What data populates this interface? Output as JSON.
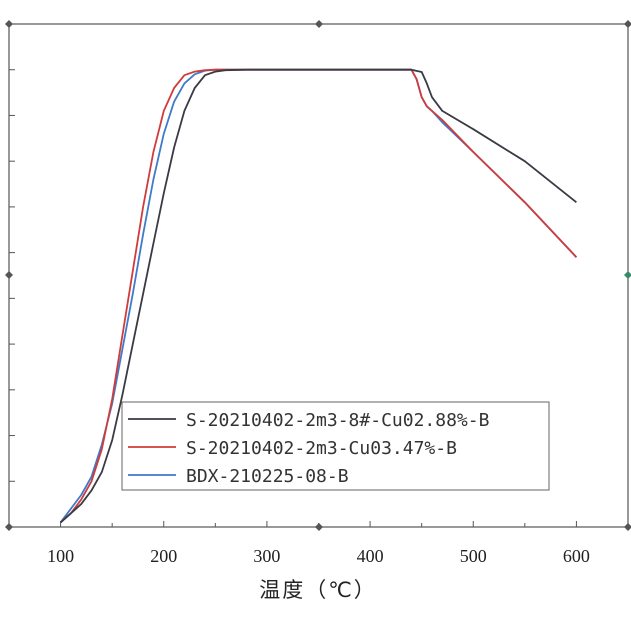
{
  "chart_data": {
    "type": "line",
    "title": "",
    "xlabel": "温度（℃）",
    "ylabel": "",
    "xlim": [
      50,
      650
    ],
    "ylim": [
      0,
      110
    ],
    "x_ticks": [
      100,
      200,
      300,
      400,
      500,
      600
    ],
    "grid": false,
    "legend": {
      "position": "bottom-right"
    },
    "series": [
      {
        "name": "S-20210402-2m3-8#-Cu02.88%-B",
        "color": "#3a3a44",
        "x": [
          100,
          110,
          120,
          130,
          140,
          150,
          160,
          170,
          180,
          190,
          200,
          210,
          220,
          230,
          240,
          250,
          260,
          280,
          300,
          350,
          400,
          440,
          450,
          455,
          460,
          470,
          500,
          550,
          600
        ],
        "y": [
          1,
          3,
          5,
          8,
          12,
          19,
          29,
          40,
          51,
          62,
          73,
          83,
          91,
          96,
          98.8,
          99.6,
          99.9,
          100,
          100,
          100,
          100,
          100,
          99.5,
          97,
          94,
          91,
          87,
          80,
          71
        ]
      },
      {
        "name": "S-20210402-2m3-Cu03.47%-B",
        "color": "#d03b3b",
        "x": [
          100,
          110,
          120,
          130,
          140,
          150,
          160,
          170,
          180,
          190,
          200,
          210,
          220,
          230,
          240,
          250,
          260,
          280,
          300,
          350,
          400,
          440,
          445,
          450,
          455,
          460,
          470,
          500,
          550,
          600
        ],
        "y": [
          1,
          3,
          6,
          10,
          17,
          28,
          42,
          56,
          70,
          82,
          91,
          96,
          98.8,
          99.6,
          99.9,
          100,
          100,
          100,
          100,
          100,
          100,
          100,
          98,
          94,
          92,
          91,
          89,
          82,
          71,
          59
        ]
      },
      {
        "name": "BDX-210225-08-B",
        "color": "#3e7bc8",
        "x": [
          100,
          110,
          120,
          130,
          140,
          150,
          160,
          170,
          180,
          190,
          200,
          210,
          220,
          230,
          240,
          250,
          260,
          280,
          300,
          350,
          400,
          440,
          445,
          450,
          455,
          460,
          470,
          500,
          550,
          600
        ],
        "y": [
          1,
          4,
          7,
          11,
          18,
          27,
          39,
          51,
          64,
          76,
          86,
          93,
          97,
          99,
          99.8,
          100,
          100,
          100,
          100,
          100,
          100,
          100,
          98,
          94,
          92,
          91,
          88.5,
          82,
          71,
          59
        ]
      }
    ]
  }
}
